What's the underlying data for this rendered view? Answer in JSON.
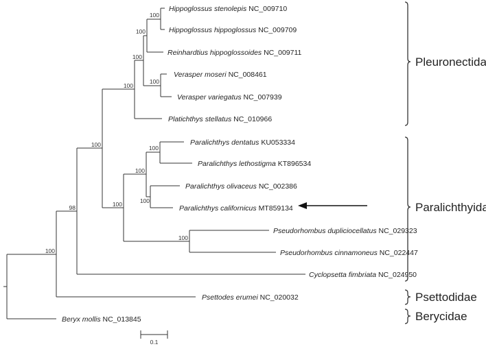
{
  "tips": [
    {
      "species": "Hippoglossus stenolepis",
      "accession": "NC_009710"
    },
    {
      "species": "Hippoglossus hippoglossus",
      "accession": "NC_009709"
    },
    {
      "species": "Reinhardtius hippoglossoides",
      "accession": "NC_009711"
    },
    {
      "species": "Verasper moseri",
      "accession": "NC_008461"
    },
    {
      "species": "Verasper variegatus",
      "accession": "NC_007939"
    },
    {
      "species": "Platichthys stellatus",
      "accession": "NC_010966"
    },
    {
      "species": "Paralichthys dentatus",
      "accession": "KU053334"
    },
    {
      "species": "Paralichthys lethostigma",
      "accession": "KT896534"
    },
    {
      "species": "Paralichthys olivaceus",
      "accession": "NC_002386"
    },
    {
      "species": "Paralichthys californicus",
      "accession": "MT859134"
    },
    {
      "species": "Pseudorhombus dupliciocellatus",
      "accession": "NC_029323"
    },
    {
      "species": "Pseudorhombus cinnamoneus",
      "accession": "NC_022447"
    },
    {
      "species": "Cyclopsetta fimbriata",
      "accession": "NC_024950"
    },
    {
      "species": "Psettodes erumei",
      "accession": "NC_020032"
    },
    {
      "species": "Beryx mollis",
      "accession": "NC_013845"
    }
  ],
  "bootstrap": [
    "100",
    "100",
    "100",
    "100",
    "100",
    "100",
    "100",
    "100",
    "100",
    "100",
    "100",
    "98",
    "100"
  ],
  "families": [
    "Pleuronectidae",
    "Paralichthyidae",
    "Psettodidae",
    "Berycidae"
  ],
  "highlight": {
    "arrow_target": "Paralichthys californicus MT859134"
  },
  "scale_bar": {
    "label": "0.1"
  }
}
